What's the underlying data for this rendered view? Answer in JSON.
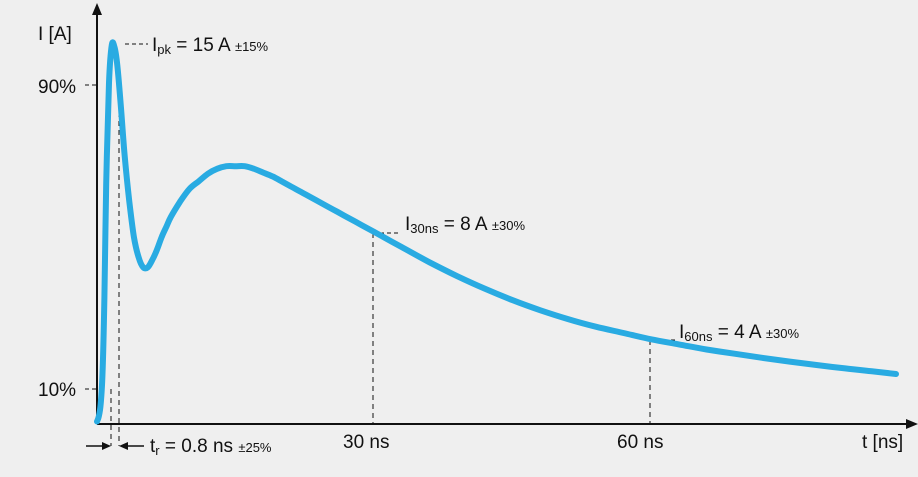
{
  "chart_data": {
    "type": "line",
    "ylabel": "I [A]",
    "xlabel": "t [ns]",
    "y_ticks": [
      "90%",
      "10%"
    ],
    "x_ticks": [
      "30 ns",
      "60 ns"
    ],
    "series": [
      {
        "color": "#29abe2",
        "x": [
          0.0,
          0.2,
          0.4,
          0.6,
          0.8,
          1.0,
          1.3,
          1.6,
          1.9,
          2.2,
          2.6,
          3.0,
          3.5,
          4.0,
          4.5,
          5.0,
          5.5,
          6.0,
          6.5,
          7.0,
          7.5,
          8.0,
          9.0,
          10.0,
          11.0,
          12.0,
          13.0,
          14.0,
          15.0,
          16.0,
          17.0,
          18.0,
          19.0,
          20.0,
          21.0,
          22.0,
          24.0,
          26.0,
          28.0,
          30.0,
          33.0,
          36.0,
          39.0,
          42.0,
          45.0,
          48.0,
          51.0,
          54.0,
          57.0,
          60.0,
          63.0,
          66.0,
          69.0,
          72.0,
          75.0,
          78.0,
          81.0,
          84.0,
          86.5
        ],
        "y": [
          0.1,
          0.3,
          0.8,
          2.0,
          5.0,
          9.5,
          13.5,
          15.0,
          14.9,
          14.2,
          12.5,
          10.6,
          8.8,
          7.4,
          6.6,
          6.2,
          6.2,
          6.5,
          6.9,
          7.4,
          7.8,
          8.2,
          8.8,
          9.3,
          9.6,
          9.9,
          10.1,
          10.2,
          10.2,
          10.2,
          10.1,
          9.95,
          9.8,
          9.6,
          9.4,
          9.2,
          8.8,
          8.4,
          8.0,
          7.6,
          7.0,
          6.4,
          5.85,
          5.35,
          4.9,
          4.5,
          4.15,
          3.85,
          3.6,
          3.35,
          3.15,
          2.95,
          2.78,
          2.62,
          2.47,
          2.33,
          2.2,
          2.08,
          1.98
        ]
      }
    ],
    "annotations": {
      "peak": {
        "symbol": "I",
        "sub": "pk",
        "rest": " = 15 A ",
        "tol": "±15%"
      },
      "i30": {
        "symbol": "I",
        "sub": "30ns",
        "rest": " = 8 A ",
        "tol": "±30%"
      },
      "i60": {
        "symbol": "I",
        "sub": "60ns",
        "rest": " = 4 A ",
        "tol": "±30%"
      },
      "tr": {
        "symbol": "t",
        "sub": "r",
        "rest": " = 0.8 ns ",
        "tol": "±25%"
      }
    }
  }
}
